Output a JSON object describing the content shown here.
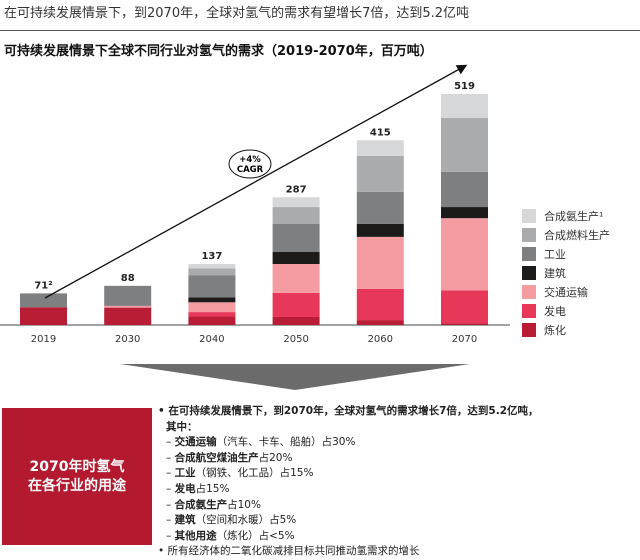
{
  "headline": "在可持续发展情景下，到2070年，全球对氢气的需求有望增长7倍，达到5.2亿吨",
  "chart_data": {
    "type": "bar",
    "stacked": true,
    "title": "可持续发展情景下全球不同行业对氢气的需求（2019-2070年，百万吨）",
    "categories": [
      "2019",
      "2030",
      "2040",
      "2050",
      "2060",
      "2070"
    ],
    "totals": [
      "71²",
      "88",
      "137",
      "287",
      "415",
      "519"
    ],
    "series": [
      {
        "name": "炼化",
        "color": "#b81d35",
        "values": [
          40,
          39,
          19,
          18,
          11,
          4
        ]
      },
      {
        "name": "发电",
        "color": "#e8385a",
        "values": [
          0,
          0,
          10,
          54,
          70,
          74
        ]
      },
      {
        "name": "交通运输",
        "color": "#f59ca3",
        "values": [
          0,
          4,
          22,
          65,
          117,
          162
        ]
      },
      {
        "name": "建筑",
        "color": "#1d1a1a",
        "values": [
          0,
          0,
          11,
          27,
          29,
          25
        ]
      },
      {
        "name": "工业",
        "color": "#7d7f80",
        "values": [
          31,
          45,
          50,
          63,
          72,
          79
        ]
      },
      {
        "name": "合成燃料生产",
        "color": "#a9abac",
        "values": [
          0,
          0,
          15,
          38,
          81,
          121
        ]
      },
      {
        "name": "合成氨生产¹",
        "color": "#d6d7d8",
        "values": [
          0,
          0,
          10,
          22,
          35,
          54
        ]
      }
    ],
    "annotation": {
      "line1": "+4%",
      "line2": "CAGR"
    },
    "ylim": [
      0,
      560
    ],
    "legend_placement": "right"
  },
  "summary": {
    "box_line1": "2070年时氢气",
    "box_line2": "在各行业的用途",
    "bullet1_a": "在可持续发展情景下，到2070年，全球对氢气的需求增长7倍，达到5.2亿吨，",
    "bullet1_b": "其中：",
    "items": [
      {
        "bold": "交通运输",
        "rest": "（汽车、卡车、船舶）占30%"
      },
      {
        "bold": "合成航空煤油生产",
        "rest": "占20%"
      },
      {
        "bold": "工业",
        "rest": "（钢铁、化工品）占15%"
      },
      {
        "bold": "发电",
        "rest": "占15%"
      },
      {
        "bold": "合成氨生产",
        "rest": "占10%"
      },
      {
        "bold": "建筑",
        "rest": "（空间和水暖）占5%"
      },
      {
        "bold": "其他用途",
        "rest": "（炼化）占<5%"
      }
    ],
    "bullet2": "所有经济体的二氧化碳减排目标共同推动氢需求的增长"
  }
}
